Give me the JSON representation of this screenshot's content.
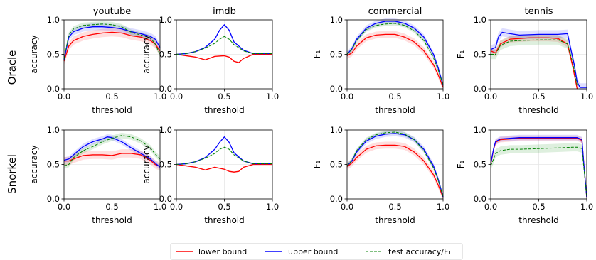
{
  "figure": {
    "row_labels": [
      "Oracle",
      "Snorkel"
    ],
    "legend": {
      "entries": [
        {
          "label": "lower bound",
          "color": "#ff0000",
          "dash": "solid"
        },
        {
          "label": "upper bound",
          "color": "#0000ff",
          "dash": "solid"
        },
        {
          "label": "test accuracy/F₁",
          "color": "#008000",
          "dash": "dashed"
        }
      ]
    }
  },
  "axes_common": {
    "xlim": [
      0,
      1
    ],
    "ylim": [
      0,
      1
    ],
    "xticks": [
      "0.0",
      "0.5",
      "1.0"
    ],
    "yticks": [
      "0.0",
      "0.5",
      "1.0"
    ],
    "xlabel": "threshold"
  },
  "chart_data": [
    {
      "type": "line",
      "row": "Oracle",
      "title": "youtube",
      "ylabel": "accuracy",
      "xlabel": "threshold",
      "xlim": [
        0,
        1
      ],
      "ylim": [
        0,
        1
      ],
      "grid": true,
      "series": [
        {
          "name": "lower bound",
          "color": "#ff0000",
          "x": [
            0,
            0.05,
            0.1,
            0.2,
            0.3,
            0.4,
            0.5,
            0.6,
            0.7,
            0.8,
            0.9,
            0.95,
            1.0
          ],
          "y": [
            0.4,
            0.62,
            0.7,
            0.76,
            0.79,
            0.81,
            0.82,
            0.81,
            0.77,
            0.75,
            0.7,
            0.65,
            0.55
          ],
          "band": 0.06
        },
        {
          "name": "upper bound",
          "color": "#0000ff",
          "x": [
            0,
            0.05,
            0.1,
            0.2,
            0.3,
            0.4,
            0.5,
            0.6,
            0.7,
            0.8,
            0.9,
            0.95,
            1.0
          ],
          "y": [
            0.42,
            0.75,
            0.83,
            0.88,
            0.9,
            0.9,
            0.89,
            0.87,
            0.83,
            0.8,
            0.76,
            0.72,
            0.6
          ],
          "band": 0.05
        },
        {
          "name": "test accuracy/F₁",
          "color": "#008000",
          "dashed": true,
          "x": [
            0,
            0.05,
            0.1,
            0.2,
            0.3,
            0.4,
            0.5,
            0.6,
            0.7,
            0.8,
            0.9,
            0.95,
            1.0
          ],
          "y": [
            0.43,
            0.78,
            0.87,
            0.92,
            0.93,
            0.94,
            0.93,
            0.9,
            0.82,
            0.78,
            0.74,
            0.65,
            0.5
          ],
          "band": 0.04
        }
      ]
    },
    {
      "type": "line",
      "row": "Oracle",
      "title": "imdb",
      "ylabel": "accuracy",
      "xlabel": "threshold",
      "xlim": [
        0,
        1
      ],
      "ylim": [
        0,
        1
      ],
      "grid": true,
      "series": [
        {
          "name": "lower bound",
          "color": "#ff0000",
          "x": [
            0,
            0.1,
            0.2,
            0.3,
            0.4,
            0.5,
            0.55,
            0.6,
            0.65,
            0.7,
            0.8,
            0.9,
            1.0
          ],
          "y": [
            0.5,
            0.48,
            0.46,
            0.42,
            0.47,
            0.48,
            0.46,
            0.4,
            0.38,
            0.44,
            0.5,
            0.5,
            0.5
          ],
          "band": 0.01
        },
        {
          "name": "upper bound",
          "color": "#0000ff",
          "x": [
            0,
            0.1,
            0.2,
            0.3,
            0.4,
            0.45,
            0.5,
            0.55,
            0.6,
            0.7,
            0.8,
            0.9,
            1.0
          ],
          "y": [
            0.5,
            0.51,
            0.54,
            0.6,
            0.72,
            0.85,
            0.93,
            0.85,
            0.68,
            0.56,
            0.51,
            0.51,
            0.51
          ],
          "band": 0.01
        },
        {
          "name": "test accuracy/F₁",
          "color": "#008000",
          "dashed": true,
          "x": [
            0,
            0.1,
            0.2,
            0.3,
            0.4,
            0.45,
            0.5,
            0.55,
            0.6,
            0.7,
            0.8,
            0.9,
            1.0
          ],
          "y": [
            0.5,
            0.51,
            0.54,
            0.59,
            0.66,
            0.72,
            0.76,
            0.72,
            0.64,
            0.55,
            0.51,
            0.51,
            0.51
          ],
          "band": 0.01
        }
      ]
    },
    {
      "type": "line",
      "row": "Oracle",
      "title": "commercial",
      "ylabel": "F₁",
      "xlabel": "threshold",
      "xlim": [
        0,
        1
      ],
      "ylim": [
        0,
        1
      ],
      "grid": true,
      "series": [
        {
          "name": "lower bound",
          "color": "#ff0000",
          "x": [
            0,
            0.05,
            0.1,
            0.2,
            0.3,
            0.4,
            0.5,
            0.6,
            0.7,
            0.8,
            0.9,
            0.95,
            1.0
          ],
          "y": [
            0.48,
            0.52,
            0.62,
            0.74,
            0.78,
            0.79,
            0.79,
            0.75,
            0.68,
            0.55,
            0.35,
            0.2,
            0.02
          ],
          "band": 0.05
        },
        {
          "name": "upper bound",
          "color": "#0000ff",
          "x": [
            0,
            0.05,
            0.1,
            0.2,
            0.3,
            0.4,
            0.5,
            0.6,
            0.7,
            0.8,
            0.9,
            0.95,
            1.0
          ],
          "y": [
            0.5,
            0.58,
            0.72,
            0.88,
            0.95,
            0.98,
            0.98,
            0.95,
            0.88,
            0.75,
            0.5,
            0.3,
            0.05
          ],
          "band": 0.04
        },
        {
          "name": "test accuracy/F₁",
          "color": "#008000",
          "dashed": true,
          "x": [
            0,
            0.05,
            0.1,
            0.2,
            0.3,
            0.4,
            0.5,
            0.6,
            0.7,
            0.8,
            0.9,
            0.95,
            1.0
          ],
          "y": [
            0.5,
            0.57,
            0.7,
            0.86,
            0.92,
            0.94,
            0.95,
            0.92,
            0.84,
            0.7,
            0.45,
            0.27,
            0.05
          ],
          "band": 0.03
        }
      ]
    },
    {
      "type": "line",
      "row": "Oracle",
      "title": "tennis",
      "ylabel": "F₁",
      "xlabel": "threshold",
      "xlim": [
        0,
        1
      ],
      "ylim": [
        0,
        1
      ],
      "grid": true,
      "series": [
        {
          "name": "lower bound",
          "color": "#ff0000",
          "x": [
            0,
            0.05,
            0.1,
            0.2,
            0.3,
            0.4,
            0.5,
            0.6,
            0.7,
            0.8,
            0.85,
            0.9
          ],
          "y": [
            0.55,
            0.52,
            0.65,
            0.72,
            0.73,
            0.74,
            0.74,
            0.74,
            0.73,
            0.65,
            0.35,
            0.0
          ],
          "band": 0.05
        },
        {
          "name": "upper bound",
          "color": "#0000ff",
          "x": [
            0,
            0.05,
            0.08,
            0.12,
            0.2,
            0.3,
            0.5,
            0.7,
            0.8,
            0.83,
            0.87,
            0.9,
            0.93,
            0.96,
            1.0
          ],
          "y": [
            0.57,
            0.6,
            0.75,
            0.82,
            0.8,
            0.78,
            0.79,
            0.79,
            0.8,
            0.6,
            0.35,
            0.1,
            0.02,
            0.02,
            0.02
          ],
          "band": 0.06
        },
        {
          "name": "test accuracy/F₁",
          "color": "#008000",
          "dashed": true,
          "x": [
            0,
            0.05,
            0.1,
            0.2,
            0.3,
            0.5,
            0.7,
            0.8,
            0.85,
            0.9
          ],
          "y": [
            0.5,
            0.5,
            0.63,
            0.69,
            0.7,
            0.71,
            0.71,
            0.65,
            0.4,
            0.05
          ],
          "band": 0.07
        }
      ]
    },
    {
      "type": "line",
      "row": "Snorkel",
      "title": "",
      "ylabel": "accuracy",
      "xlabel": "threshold",
      "xlim": [
        0,
        1
      ],
      "ylim": [
        0,
        1
      ],
      "grid": true,
      "series": [
        {
          "name": "lower bound",
          "color": "#ff0000",
          "x": [
            0,
            0.05,
            0.1,
            0.2,
            0.3,
            0.4,
            0.5,
            0.6,
            0.7,
            0.8,
            0.9,
            0.95,
            1.0
          ],
          "y": [
            0.55,
            0.55,
            0.58,
            0.63,
            0.64,
            0.64,
            0.63,
            0.66,
            0.66,
            0.64,
            0.56,
            0.5,
            0.47
          ],
          "band": 0.06
        },
        {
          "name": "upper bound",
          "color": "#0000ff",
          "x": [
            0,
            0.05,
            0.1,
            0.2,
            0.3,
            0.4,
            0.45,
            0.5,
            0.6,
            0.7,
            0.8,
            0.9,
            0.95,
            1.0
          ],
          "y": [
            0.56,
            0.58,
            0.64,
            0.76,
            0.83,
            0.87,
            0.9,
            0.89,
            0.83,
            0.74,
            0.66,
            0.58,
            0.52,
            0.46
          ],
          "band": 0.04
        },
        {
          "name": "test accuracy/F₁",
          "color": "#008000",
          "dashed": true,
          "x": [
            0,
            0.05,
            0.1,
            0.2,
            0.3,
            0.4,
            0.5,
            0.6,
            0.7,
            0.8,
            0.9,
            0.95,
            1.0
          ],
          "y": [
            0.48,
            0.5,
            0.6,
            0.7,
            0.76,
            0.83,
            0.88,
            0.92,
            0.9,
            0.84,
            0.74,
            0.65,
            0.58
          ],
          "band": 0.04
        }
      ]
    },
    {
      "type": "line",
      "row": "Snorkel",
      "title": "",
      "ylabel": "accuracy",
      "xlabel": "threshold",
      "xlim": [
        0,
        1
      ],
      "ylim": [
        0,
        1
      ],
      "grid": true,
      "series": [
        {
          "name": "lower bound",
          "color": "#ff0000",
          "x": [
            0,
            0.1,
            0.2,
            0.3,
            0.4,
            0.5,
            0.55,
            0.6,
            0.65,
            0.7,
            0.8,
            0.9,
            1.0
          ],
          "y": [
            0.5,
            0.48,
            0.46,
            0.42,
            0.46,
            0.43,
            0.4,
            0.39,
            0.4,
            0.46,
            0.5,
            0.5,
            0.5
          ],
          "band": 0.01
        },
        {
          "name": "upper bound",
          "color": "#0000ff",
          "x": [
            0,
            0.1,
            0.2,
            0.3,
            0.4,
            0.45,
            0.5,
            0.55,
            0.6,
            0.7,
            0.8,
            0.9,
            1.0
          ],
          "y": [
            0.5,
            0.51,
            0.54,
            0.6,
            0.72,
            0.82,
            0.9,
            0.82,
            0.67,
            0.55,
            0.51,
            0.51,
            0.51
          ],
          "band": 0.01
        },
        {
          "name": "test accuracy/F₁",
          "color": "#008000",
          "dashed": true,
          "x": [
            0,
            0.1,
            0.2,
            0.3,
            0.4,
            0.45,
            0.5,
            0.55,
            0.6,
            0.7,
            0.8,
            0.9,
            1.0
          ],
          "y": [
            0.5,
            0.51,
            0.54,
            0.59,
            0.66,
            0.72,
            0.75,
            0.72,
            0.64,
            0.55,
            0.51,
            0.51,
            0.51
          ],
          "band": 0.01
        }
      ]
    },
    {
      "type": "line",
      "row": "Snorkel",
      "title": "",
      "ylabel": "F₁",
      "xlabel": "threshold",
      "xlim": [
        0,
        1
      ],
      "ylim": [
        0,
        1
      ],
      "grid": true,
      "series": [
        {
          "name": "lower bound",
          "color": "#ff0000",
          "x": [
            0,
            0.05,
            0.1,
            0.2,
            0.3,
            0.4,
            0.5,
            0.6,
            0.7,
            0.8,
            0.9,
            0.95,
            1.0
          ],
          "y": [
            0.47,
            0.52,
            0.6,
            0.72,
            0.77,
            0.78,
            0.78,
            0.76,
            0.68,
            0.55,
            0.35,
            0.2,
            0.02
          ],
          "band": 0.05
        },
        {
          "name": "upper bound",
          "color": "#0000ff",
          "x": [
            0,
            0.05,
            0.1,
            0.2,
            0.3,
            0.4,
            0.5,
            0.6,
            0.7,
            0.8,
            0.9,
            0.95,
            1.0
          ],
          "y": [
            0.48,
            0.55,
            0.68,
            0.84,
            0.91,
            0.94,
            0.95,
            0.93,
            0.86,
            0.72,
            0.48,
            0.28,
            0.03
          ],
          "band": 0.04
        },
        {
          "name": "test accuracy/F₁",
          "color": "#008000",
          "dashed": true,
          "x": [
            0,
            0.05,
            0.1,
            0.2,
            0.3,
            0.4,
            0.5,
            0.6,
            0.7,
            0.8,
            0.9,
            0.95,
            1.0
          ],
          "y": [
            0.48,
            0.56,
            0.7,
            0.86,
            0.93,
            0.96,
            0.97,
            0.94,
            0.86,
            0.7,
            0.45,
            0.27,
            0.03
          ],
          "band": 0.03
        }
      ]
    },
    {
      "type": "line",
      "row": "Snorkel",
      "title": "",
      "ylabel": "F₁",
      "xlabel": "threshold",
      "xlim": [
        0,
        1
      ],
      "ylim": [
        0,
        1
      ],
      "grid": true,
      "series": [
        {
          "name": "lower bound",
          "color": "#ff0000",
          "x": [
            0,
            0.03,
            0.05,
            0.1,
            0.2,
            0.3,
            0.5,
            0.7,
            0.85,
            0.9,
            0.95,
            0.97,
            1.0
          ],
          "y": [
            0.5,
            0.72,
            0.82,
            0.86,
            0.87,
            0.88,
            0.88,
            0.88,
            0.88,
            0.88,
            0.85,
            0.5,
            0.02
          ],
          "band": 0.04
        },
        {
          "name": "upper bound",
          "color": "#0000ff",
          "x": [
            0,
            0.03,
            0.05,
            0.1,
            0.2,
            0.3,
            0.5,
            0.7,
            0.85,
            0.9,
            0.95,
            0.97,
            1.0
          ],
          "y": [
            0.51,
            0.73,
            0.83,
            0.87,
            0.88,
            0.89,
            0.89,
            0.89,
            0.89,
            0.89,
            0.86,
            0.5,
            0.02
          ],
          "band": 0.04
        },
        {
          "name": "test accuracy/F₁",
          "color": "#008000",
          "dashed": true,
          "x": [
            0,
            0.03,
            0.05,
            0.1,
            0.2,
            0.3,
            0.5,
            0.7,
            0.85,
            0.9,
            0.95,
            0.97,
            1.0
          ],
          "y": [
            0.48,
            0.58,
            0.66,
            0.7,
            0.72,
            0.72,
            0.73,
            0.74,
            0.75,
            0.75,
            0.73,
            0.45,
            0.02
          ],
          "band": 0.06
        }
      ]
    }
  ]
}
